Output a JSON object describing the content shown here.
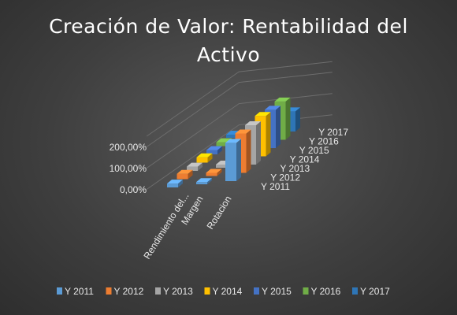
{
  "chart_data": {
    "type": "bar",
    "style": "3d-column",
    "title": "Creación de Valor: Rentabilidad del Activo",
    "title_lines": [
      "Creación de Valor: Rentabilidad del",
      "Activo"
    ],
    "categories": [
      "Rendimiento del...",
      "Margen",
      "Rotacion"
    ],
    "y_ticks": [
      "0,00%",
      "100,00%",
      "200,00%"
    ],
    "ylim": [
      0,
      250
    ],
    "legend_position": "bottom",
    "series": [
      {
        "name": "Y 2011",
        "color": "#5b9bd5",
        "values": [
          18,
          10,
          180
        ]
      },
      {
        "name": "Y 2012",
        "color": "#ed7d31",
        "values": [
          25,
          15,
          185
        ]
      },
      {
        "name": "Y 2013",
        "color": "#a5a5a5",
        "values": [
          20,
          15,
          185
        ]
      },
      {
        "name": "Y 2014",
        "color": "#ffc000",
        "values": [
          25,
          14,
          190
        ]
      },
      {
        "name": "Y 2015",
        "color": "#4472c4",
        "values": [
          20,
          12,
          180
        ]
      },
      {
        "name": "Y 2016",
        "color": "#70ad47",
        "values": [
          18,
          12,
          180
        ]
      },
      {
        "name": "Y 2017",
        "color": "#2e75b6",
        "values": [
          15,
          10,
          95
        ]
      }
    ]
  }
}
